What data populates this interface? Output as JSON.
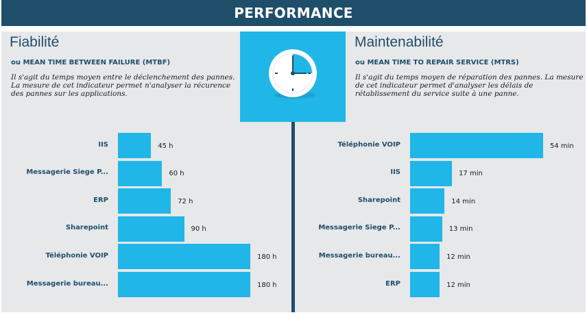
{
  "banner": {
    "title": "PERFORMANCE"
  },
  "left": {
    "title": "Fiabilité",
    "subtitle": "ou MEAN TIME BETWEEN FAILURE (MTBF)",
    "description": "Il s'agit du temps moyen entre le déclenchement des pannes. La mesure de cet indicateur permet n'analyser la récurence des pannes sur les applications."
  },
  "right": {
    "title": "Maintenabilité",
    "subtitle": "ou MEAN TIME TO REPAIR SERVICE (MTRS)",
    "description": "Il s'agit du temps moyen de réparation des pannes. La mesure de cet indicateur permet d'analyser les délais de rétablissement du service suite à une panne."
  },
  "colors": {
    "banner": "#1f4e6b",
    "bar": "#20b6e8",
    "panel": "#e7e8ea",
    "heading": "#1f4e6b"
  },
  "icon": "clock-icon",
  "chart_data": [
    {
      "type": "bar",
      "orientation": "horizontal",
      "categories": [
        "IIS",
        "Messagerie Siege P...",
        "ERP",
        "Sharepoint",
        "Téléphonie VOIP",
        "Messagerie bureau..."
      ],
      "values": [
        45,
        60,
        72,
        90,
        180,
        180
      ],
      "value_labels": [
        "45 h",
        "60 h",
        "72 h",
        "90 h",
        "180 h",
        "180 h"
      ],
      "xlim": [
        0,
        180
      ]
    },
    {
      "type": "bar",
      "orientation": "horizontal",
      "categories": [
        "Téléphonie VOIP",
        "IIS",
        "Sharepoint",
        "Messagerie Siege P...",
        "Messagerie bureau...",
        "ERP"
      ],
      "values": [
        54,
        17,
        14,
        13,
        12,
        12
      ],
      "value_labels": [
        "54 min",
        "17 min",
        "14 min",
        "13 min",
        "12 min",
        "12 min"
      ],
      "xlim": [
        0,
        54
      ]
    }
  ]
}
